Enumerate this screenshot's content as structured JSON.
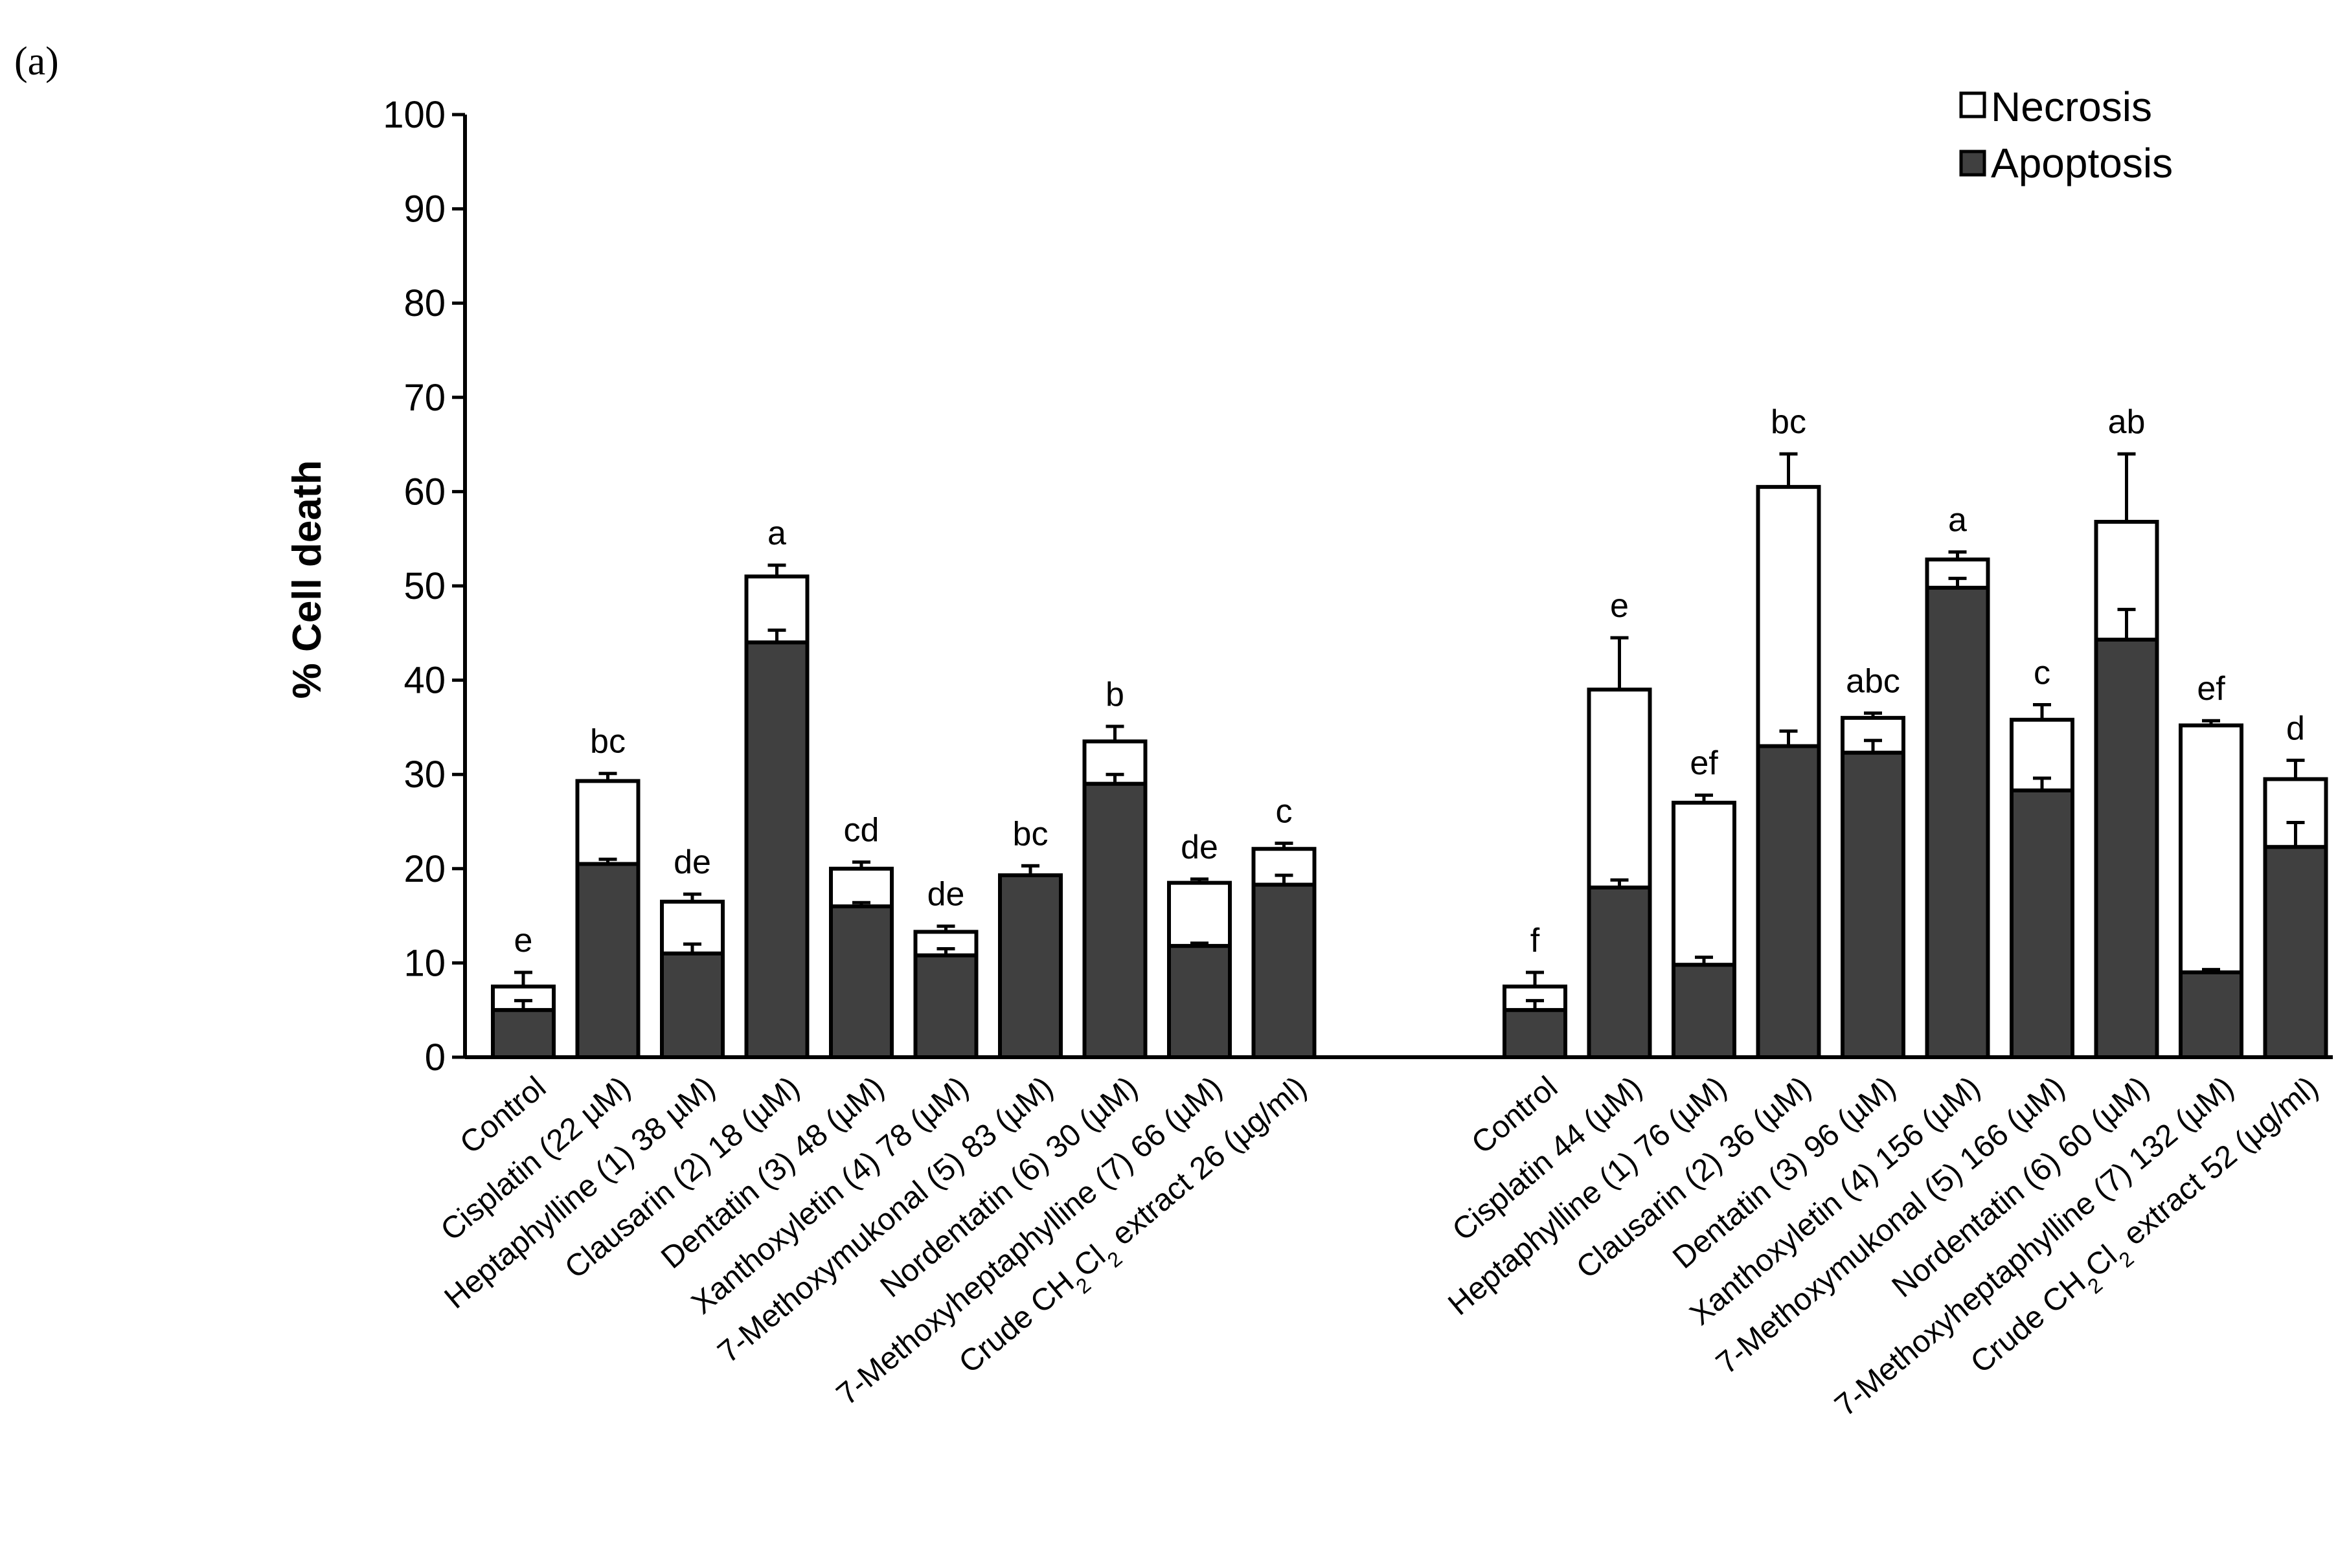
{
  "panel_label": "(a)",
  "colors": {
    "necrosis": "#ffffff",
    "apoptosis": "#404040",
    "stroke": "#000000"
  },
  "chart_data": {
    "type": "bar",
    "stacked": true,
    "ylabel": "% Cell death",
    "ylim": [
      0,
      100
    ],
    "yticks": [
      "0",
      "10",
      "20",
      "30",
      "40",
      "50",
      "60",
      "70",
      "80",
      "90",
      "100"
    ],
    "legend": {
      "position": "top-right",
      "entries": [
        "Necrosis",
        "Apoptosis"
      ]
    },
    "groups": [
      {
        "categories": [
          {
            "parts": [
              "Control"
            ]
          },
          {
            "parts": [
              "Cisplatin (22 µM)"
            ]
          },
          {
            "parts": [
              "Heptaphylline  (1) 38 µM)"
            ]
          },
          {
            "parts": [
              "Clausarin (2) 18 (µM)"
            ]
          },
          {
            "parts": [
              "Dentatin (3) 48 (µM)"
            ]
          },
          {
            "parts": [
              "Xanthoxyletin  (4) 78 (µM)"
            ]
          },
          {
            "parts": [
              "7-Methoxymukonal  (5) 83  (µM)"
            ]
          },
          {
            "parts": [
              "Nordentatin (6) 30 (µM)"
            ]
          },
          {
            "parts": [
              "7-Methoxyheptaphylline  (7) 66 (µM)"
            ]
          },
          {
            "parts": [
              "Crude CH",
              "2",
              "Cl",
              "2",
              " extract 26 (µg/ml)"
            ]
          }
        ],
        "series": [
          {
            "name": "Apoptosis",
            "values": [
              5,
              20.5,
              11,
              44,
              16,
              10.8,
              19.3,
              29,
              11.8,
              18.3
            ],
            "errors": [
              1,
              0.5,
              1,
              1.3,
              0.4,
              0.7,
              1,
              1,
              0.3,
              1
            ]
          },
          {
            "name": "Necrosis",
            "values": [
              2.5,
              8.8,
              5.5,
              7,
              4,
              2.5,
              0,
              4.5,
              6.7,
              3.8
            ],
            "errors": [
              1.5,
              0.8,
              0.8,
              1.2,
              0.7,
              0.6,
              1,
              1.6,
              0.4,
              0.6
            ]
          }
        ],
        "letters": [
          "e",
          "bc",
          "de",
          "a",
          "cd",
          "de",
          "bc",
          "b",
          "de",
          "c"
        ]
      },
      {
        "categories": [
          {
            "parts": [
              "Control"
            ]
          },
          {
            "parts": [
              "Cisplatin 44 (µM)"
            ]
          },
          {
            "parts": [
              "Heptaphylline  (1) 76 (µM)"
            ]
          },
          {
            "parts": [
              "Clausarin (2) 36 (µM)"
            ]
          },
          {
            "parts": [
              "Dentatin (3) 96 (µM)"
            ]
          },
          {
            "parts": [
              "Xanthoxyletin  (4) 156 (µM)"
            ]
          },
          {
            "parts": [
              "7-Methoxymukonal  (5) 166 (µM)"
            ]
          },
          {
            "parts": [
              "Nordentatin (6) 60 (µM)"
            ]
          },
          {
            "parts": [
              "7-Methoxyheptaphylline  (7) 132 (µM)"
            ]
          },
          {
            "parts": [
              "Crude CH",
              "2",
              "Cl",
              "2",
              " extract 52 (µg/ml)"
            ]
          }
        ],
        "series": [
          {
            "name": "Apoptosis",
            "values": [
              5,
              18,
              9.8,
              33,
              32.3,
              49.8,
              28.3,
              44.3,
              9,
              22.3
            ],
            "errors": [
              1,
              0.8,
              0.8,
              1.6,
              1.3,
              1,
              1.3,
              3.2,
              0.3,
              2.6
            ]
          },
          {
            "name": "Necrosis",
            "values": [
              2.5,
              21,
              17.2,
              27.5,
              3.7,
              3,
              7.5,
              12.5,
              26.2,
              7.2
            ],
            "errors": [
              1.5,
              5.5,
              0.8,
              3.5,
              0.5,
              0.8,
              1.6,
              7.2,
              0.5,
              2
            ]
          }
        ],
        "letters": [
          "f",
          "e",
          "ef",
          "bc",
          "abc",
          "a",
          "c",
          "ab",
          "ef",
          "d"
        ]
      }
    ]
  }
}
